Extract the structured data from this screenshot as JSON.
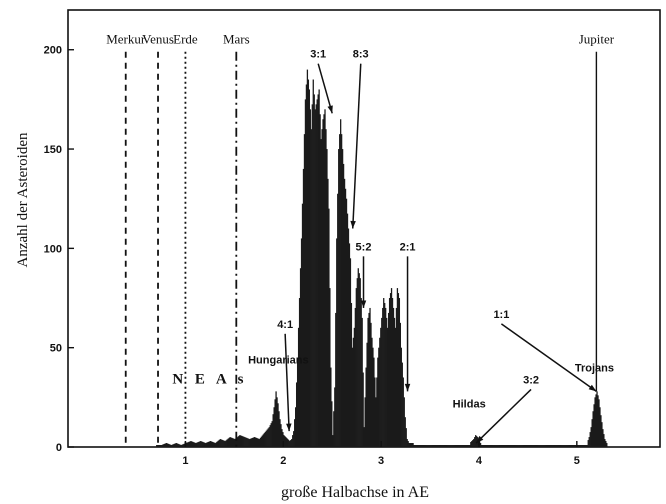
{
  "chart_data": {
    "type": "bar",
    "xlabel": "große Halbachse in AE",
    "ylabel": "Anzahl der Asteroiden",
    "xlim": [
      -0.2,
      5.85
    ],
    "ylim": [
      0,
      220
    ],
    "x_ticks": [
      1,
      2,
      3,
      4,
      5
    ],
    "y_ticks": [
      0,
      50,
      100,
      150,
      200
    ],
    "grid": false,
    "bar_color": "#1a1a1a",
    "planets": [
      {
        "name": "Merkur",
        "a": 0.39,
        "style": "dashed"
      },
      {
        "name": "Venus",
        "a": 0.72,
        "style": "dashed"
      },
      {
        "name": "Erde",
        "a": 1.0,
        "style": "dotted"
      },
      {
        "name": "Mars",
        "a": 1.52,
        "style": "dashdot"
      },
      {
        "name": "Jupiter",
        "a": 5.2,
        "style": "solid"
      }
    ],
    "group_labels": [
      {
        "text": "N E A s",
        "a": 1.25,
        "y": 32
      },
      {
        "text": "Hungarians",
        "a": 1.95,
        "y": 42
      },
      {
        "text": "Hildas",
        "a": 3.9,
        "y": 20
      },
      {
        "text": "Trojans",
        "a": 5.18,
        "y": 38
      }
    ],
    "resonances": [
      {
        "label": "4:1",
        "a": 2.06,
        "label_y": 60,
        "tip_y": 8
      },
      {
        "label": "3:1",
        "a": 2.5,
        "label_y": 196,
        "tip_y": 168
      },
      {
        "label": "8:3",
        "a": 2.71,
        "label_y": 196,
        "tip_y": 110
      },
      {
        "label": "5:2",
        "a": 2.82,
        "label_y": 99,
        "tip_y": 70
      },
      {
        "label": "2:1",
        "a": 3.27,
        "label_y": 99,
        "tip_y": 28
      },
      {
        "label": "3:2",
        "a": 3.97,
        "label_y": 32,
        "tip_y": 2
      },
      {
        "label": "1:1",
        "a": 5.2,
        "label_y": 65,
        "tip_y": 28
      }
    ],
    "histogram": {
      "bin_width": 0.01,
      "bins": [
        {
          "x": 0.7,
          "y": 1
        },
        {
          "x": 0.75,
          "y": 1
        },
        {
          "x": 0.8,
          "y": 2
        },
        {
          "x": 0.85,
          "y": 1
        },
        {
          "x": 0.9,
          "y": 2
        },
        {
          "x": 0.95,
          "y": 1
        },
        {
          "x": 1.0,
          "y": 2
        },
        {
          "x": 1.05,
          "y": 3
        },
        {
          "x": 1.1,
          "y": 2
        },
        {
          "x": 1.15,
          "y": 3
        },
        {
          "x": 1.2,
          "y": 2
        },
        {
          "x": 1.25,
          "y": 3
        },
        {
          "x": 1.3,
          "y": 2
        },
        {
          "x": 1.35,
          "y": 4
        },
        {
          "x": 1.4,
          "y": 3
        },
        {
          "x": 1.45,
          "y": 5
        },
        {
          "x": 1.5,
          "y": 4
        },
        {
          "x": 1.55,
          "y": 6
        },
        {
          "x": 1.6,
          "y": 5
        },
        {
          "x": 1.65,
          "y": 4
        },
        {
          "x": 1.7,
          "y": 5
        },
        {
          "x": 1.75,
          "y": 4
        },
        {
          "x": 1.8,
          "y": 7
        },
        {
          "x": 1.85,
          "y": 10
        },
        {
          "x": 1.88,
          "y": 13
        },
        {
          "x": 1.9,
          "y": 20
        },
        {
          "x": 1.92,
          "y": 28
        },
        {
          "x": 1.94,
          "y": 22
        },
        {
          "x": 1.96,
          "y": 14
        },
        {
          "x": 1.98,
          "y": 9
        },
        {
          "x": 2.0,
          "y": 6
        },
        {
          "x": 2.02,
          "y": 5
        },
        {
          "x": 2.04,
          "y": 4
        },
        {
          "x": 2.06,
          "y": 3
        },
        {
          "x": 2.08,
          "y": 4
        },
        {
          "x": 2.1,
          "y": 8
        },
        {
          "x": 2.12,
          "y": 20
        },
        {
          "x": 2.14,
          "y": 45
        },
        {
          "x": 2.16,
          "y": 75
        },
        {
          "x": 2.18,
          "y": 105
        },
        {
          "x": 2.2,
          "y": 140
        },
        {
          "x": 2.22,
          "y": 175
        },
        {
          "x": 2.24,
          "y": 190
        },
        {
          "x": 2.26,
          "y": 180
        },
        {
          "x": 2.28,
          "y": 160
        },
        {
          "x": 2.3,
          "y": 185
        },
        {
          "x": 2.32,
          "y": 170
        },
        {
          "x": 2.34,
          "y": 175
        },
        {
          "x": 2.36,
          "y": 180
        },
        {
          "x": 2.38,
          "y": 155
        },
        {
          "x": 2.4,
          "y": 165
        },
        {
          "x": 2.42,
          "y": 170
        },
        {
          "x": 2.44,
          "y": 150
        },
        {
          "x": 2.46,
          "y": 120
        },
        {
          "x": 2.48,
          "y": 40
        },
        {
          "x": 2.5,
          "y": 6
        },
        {
          "x": 2.52,
          "y": 30
        },
        {
          "x": 2.54,
          "y": 105
        },
        {
          "x": 2.56,
          "y": 150
        },
        {
          "x": 2.58,
          "y": 165
        },
        {
          "x": 2.6,
          "y": 150
        },
        {
          "x": 2.62,
          "y": 135
        },
        {
          "x": 2.64,
          "y": 125
        },
        {
          "x": 2.66,
          "y": 110
        },
        {
          "x": 2.68,
          "y": 95
        },
        {
          "x": 2.7,
          "y": 50
        },
        {
          "x": 2.72,
          "y": 60
        },
        {
          "x": 2.74,
          "y": 80
        },
        {
          "x": 2.76,
          "y": 90
        },
        {
          "x": 2.78,
          "y": 85
        },
        {
          "x": 2.8,
          "y": 65
        },
        {
          "x": 2.82,
          "y": 10
        },
        {
          "x": 2.84,
          "y": 40
        },
        {
          "x": 2.86,
          "y": 65
        },
        {
          "x": 2.88,
          "y": 70
        },
        {
          "x": 2.9,
          "y": 55
        },
        {
          "x": 2.92,
          "y": 45
        },
        {
          "x": 2.94,
          "y": 25
        },
        {
          "x": 2.96,
          "y": 45
        },
        {
          "x": 2.98,
          "y": 55
        },
        {
          "x": 3.0,
          "y": 65
        },
        {
          "x": 3.02,
          "y": 75
        },
        {
          "x": 3.04,
          "y": 70
        },
        {
          "x": 3.06,
          "y": 60
        },
        {
          "x": 3.08,
          "y": 75
        },
        {
          "x": 3.1,
          "y": 80
        },
        {
          "x": 3.12,
          "y": 70
        },
        {
          "x": 3.14,
          "y": 60
        },
        {
          "x": 3.16,
          "y": 80
        },
        {
          "x": 3.18,
          "y": 75
        },
        {
          "x": 3.2,
          "y": 50
        },
        {
          "x": 3.22,
          "y": 35
        },
        {
          "x": 3.24,
          "y": 15
        },
        {
          "x": 3.26,
          "y": 4
        },
        {
          "x": 3.28,
          "y": 2
        },
        {
          "x": 3.32,
          "y": 2
        },
        {
          "x": 3.4,
          "y": 1
        },
        {
          "x": 3.5,
          "y": 1
        },
        {
          "x": 3.6,
          "y": 1
        },
        {
          "x": 3.7,
          "y": 1
        },
        {
          "x": 3.8,
          "y": 1
        },
        {
          "x": 3.9,
          "y": 2
        },
        {
          "x": 3.94,
          "y": 4
        },
        {
          "x": 3.96,
          "y": 6
        },
        {
          "x": 3.98,
          "y": 5
        },
        {
          "x": 4.0,
          "y": 3
        },
        {
          "x": 4.02,
          "y": 1
        },
        {
          "x": 4.2,
          "y": 1
        },
        {
          "x": 5.1,
          "y": 2
        },
        {
          "x": 5.12,
          "y": 5
        },
        {
          "x": 5.14,
          "y": 10
        },
        {
          "x": 5.16,
          "y": 18
        },
        {
          "x": 5.18,
          "y": 25
        },
        {
          "x": 5.2,
          "y": 28
        },
        {
          "x": 5.22,
          "y": 24
        },
        {
          "x": 5.24,
          "y": 16
        },
        {
          "x": 5.26,
          "y": 9
        },
        {
          "x": 5.28,
          "y": 4
        },
        {
          "x": 5.3,
          "y": 2
        }
      ]
    }
  }
}
